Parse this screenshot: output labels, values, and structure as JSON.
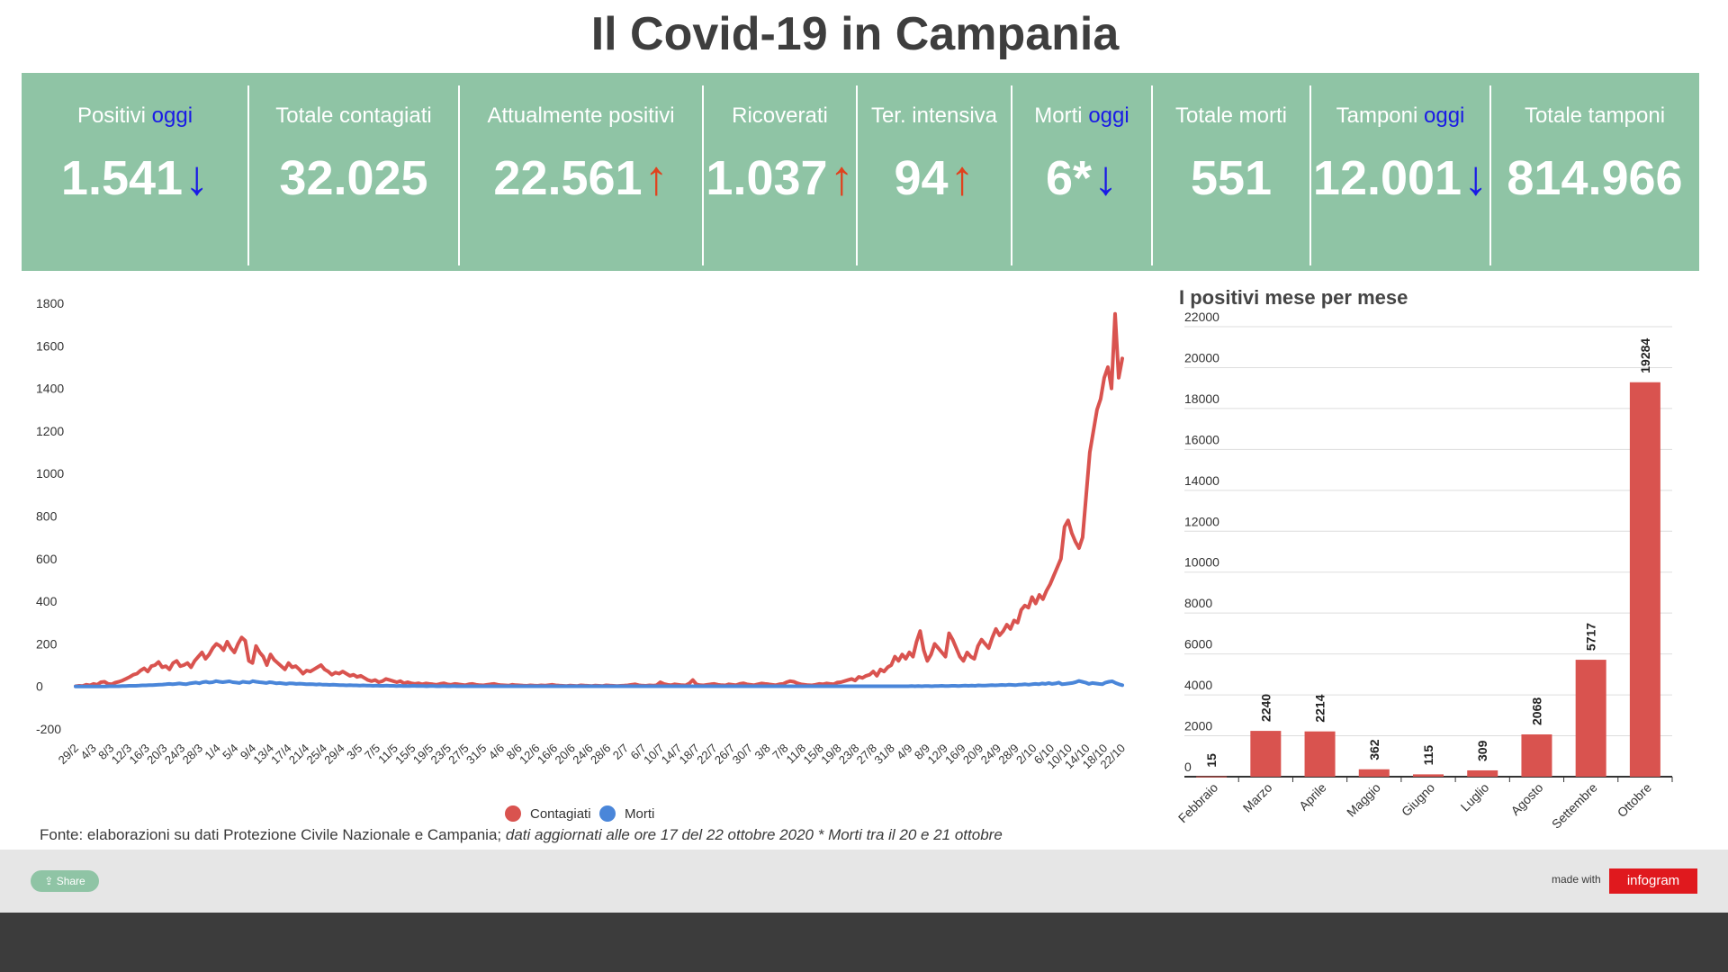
{
  "title": "Il Covid-19 in Campania",
  "stats": [
    {
      "label": "Positivi",
      "label_accent": "oggi",
      "value": "1.541",
      "arrow": "down"
    },
    {
      "label": "Totale contagiati",
      "label_accent": "",
      "value": "32.025",
      "arrow": ""
    },
    {
      "label": "Attualmente positivi",
      "label_accent": "",
      "value": "22.561",
      "arrow": "up"
    },
    {
      "label": "Ricoverati",
      "label_accent": "",
      "value": "1.037",
      "arrow": "up"
    },
    {
      "label": "Ter. intensiva",
      "label_accent": "",
      "value": "94",
      "arrow": "up"
    },
    {
      "label": "Morti",
      "label_accent": "oggi",
      "value": "6*",
      "arrow": "down"
    },
    {
      "label": "Totale morti",
      "label_accent": "",
      "value": "551",
      "arrow": ""
    },
    {
      "label": "Tamponi",
      "label_accent": "oggi",
      "value": "12.001",
      "arrow": "down"
    },
    {
      "label": "Totale tamponi",
      "label_accent": "",
      "value": "814.966",
      "arrow": ""
    }
  ],
  "arrow_glyphs": {
    "up": "↑",
    "down": "↓"
  },
  "colors": {
    "band": "#8fc4a5",
    "accent": "#1a1ae6",
    "arrow_up": "#e0421e",
    "contagiati": "#d9534f",
    "morti": "#4a86d9",
    "bars": "#d9534f"
  },
  "chart_data": [
    {
      "type": "line",
      "title": "",
      "ylim": [
        -200,
        1800
      ],
      "yticks": [
        -200,
        0,
        200,
        400,
        600,
        800,
        1000,
        1200,
        1400,
        1600,
        1800
      ],
      "grid": false,
      "legend_position": "bottom",
      "xtick_labels": [
        "29/2",
        "4/3",
        "8/3",
        "12/3",
        "16/3",
        "20/3",
        "24/3",
        "28/3",
        "1/4",
        "5/4",
        "9/4",
        "13/4",
        "17/4",
        "21/4",
        "25/4",
        "29/4",
        "3/5",
        "7/5",
        "11/5",
        "15/5",
        "19/5",
        "23/5",
        "27/5",
        "31/5",
        "4/6",
        "8/6",
        "12/6",
        "16/6",
        "20/6",
        "24/6",
        "28/6",
        "2/7",
        "6/7",
        "10/7",
        "14/7",
        "18/7",
        "22/7",
        "26/7",
        "30/7",
        "3/8",
        "7/8",
        "11/8",
        "15/8",
        "19/8",
        "23/8",
        "27/8",
        "31/8",
        "4/9",
        "8/9",
        "12/9",
        "16/9",
        "20/9",
        "24/9",
        "28/9",
        "2/10",
        "6/10",
        "10/10",
        "14/10",
        "18/10",
        "22/10"
      ],
      "series": [
        {
          "name": "Contagiati",
          "color": "#d9534f",
          "values": [
            1,
            3,
            2,
            8,
            5,
            12,
            8,
            20,
            22,
            12,
            10,
            18,
            22,
            28,
            36,
            45,
            55,
            60,
            75,
            85,
            70,
            95,
            100,
            115,
            90,
            95,
            80,
            110,
            120,
            95,
            100,
            110,
            90,
            120,
            140,
            160,
            130,
            150,
            180,
            200,
            190,
            170,
            210,
            180,
            160,
            200,
            230,
            215,
            120,
            110,
            190,
            160,
            140,
            100,
            150,
            125,
            110,
            95,
            80,
            110,
            90,
            95,
            80,
            60,
            75,
            70,
            80,
            90,
            100,
            80,
            70,
            55,
            65,
            60,
            70,
            60,
            50,
            55,
            45,
            50,
            40,
            30,
            25,
            30,
            20,
            25,
            35,
            30,
            25,
            20,
            25,
            15,
            20,
            15,
            12,
            15,
            10,
            14,
            12,
            10,
            8,
            12,
            15,
            10,
            8,
            12,
            10,
            8,
            6,
            10,
            12,
            8,
            6,
            5,
            8,
            10,
            12,
            8,
            6,
            5,
            4,
            8,
            6,
            5,
            4,
            3,
            5,
            4,
            3,
            5,
            4,
            6,
            8,
            5,
            4,
            3,
            2,
            4,
            3,
            2,
            5,
            4,
            3,
            2,
            4,
            3,
            2,
            5,
            4,
            3,
            2,
            3,
            4,
            5,
            8,
            10,
            6,
            4,
            3,
            5,
            4,
            6,
            20,
            12,
            8,
            6,
            10,
            8,
            6,
            5,
            14,
            30,
            10,
            6,
            5,
            8,
            10,
            12,
            8,
            6,
            5,
            10,
            8,
            6,
            12,
            15,
            10,
            8,
            6,
            10,
            14,
            12,
            10,
            8,
            6,
            10,
            12,
            20,
            25,
            22,
            15,
            10,
            8,
            6,
            5,
            8,
            12,
            10,
            14,
            12,
            10,
            18,
            20,
            25,
            30,
            35,
            28,
            45,
            40,
            50,
            55,
            70,
            50,
            80,
            70,
            90,
            100,
            140,
            120,
            150,
            130,
            160,
            140,
            210,
            260,
            170,
            120,
            150,
            200,
            180,
            160,
            140,
            250,
            220,
            180,
            140,
            120,
            160,
            140,
            130,
            190,
            220,
            200,
            180,
            230,
            270,
            240,
            260,
            290,
            270,
            310,
            300,
            360,
            380,
            370,
            420,
            390,
            430,
            410,
            450,
            480,
            520,
            560,
            600,
            750,
            780,
            720,
            680,
            650,
            700,
            900,
            1100,
            1200,
            1300,
            1350,
            1450,
            1500,
            1400,
            1750,
            1450,
            1541
          ]
        },
        {
          "name": "Morti",
          "color": "#4a86d9",
          "values": [
            0,
            0,
            0,
            0,
            0,
            0,
            0,
            0,
            0,
            0,
            1,
            1,
            1,
            1,
            2,
            2,
            3,
            3,
            3,
            4,
            5,
            5,
            6,
            6,
            7,
            8,
            9,
            10,
            12,
            10,
            12,
            14,
            12,
            10,
            14,
            16,
            18,
            15,
            20,
            22,
            18,
            20,
            25,
            22,
            20,
            22,
            24,
            20,
            18,
            16,
            22,
            20,
            18,
            25,
            22,
            20,
            18,
            16,
            20,
            18,
            15,
            16,
            14,
            12,
            15,
            14,
            12,
            13,
            12,
            10,
            11,
            10,
            9,
            10,
            8,
            8,
            7,
            8,
            7,
            6,
            6,
            5,
            6,
            5,
            5,
            4,
            5,
            4,
            4,
            3,
            4,
            3,
            3,
            4,
            3,
            3,
            2,
            3,
            2,
            2,
            2,
            3,
            2,
            2,
            2,
            1,
            2,
            2,
            1,
            1,
            2,
            1,
            1,
            2,
            1,
            1,
            1,
            1,
            1,
            1,
            1,
            1,
            1,
            1,
            1,
            1,
            1,
            1,
            1,
            1,
            1,
            1,
            1,
            1,
            1,
            1,
            1,
            1,
            1,
            1,
            1,
            1,
            1,
            1,
            1,
            1,
            1,
            1,
            1,
            1,
            1,
            1,
            1,
            1,
            1,
            1,
            1,
            1,
            1,
            1,
            1,
            1,
            1,
            1,
            1,
            1,
            1,
            1,
            1,
            1,
            1,
            1,
            1,
            1,
            1,
            1,
            1,
            1,
            1,
            1,
            1,
            1,
            1,
            1,
            1,
            1,
            1,
            1,
            1,
            1,
            1,
            1,
            1,
            1,
            1,
            1,
            1,
            1,
            1,
            1,
            1,
            1,
            1,
            1,
            1,
            1,
            1,
            1,
            1,
            1,
            1,
            1,
            1,
            1,
            1,
            1,
            1,
            1,
            1,
            1,
            1,
            1,
            1,
            1,
            1,
            1,
            1,
            1,
            1,
            1,
            1,
            1,
            1,
            1,
            1,
            1,
            1,
            1,
            1,
            1,
            1,
            1,
            1,
            1,
            1,
            1,
            1,
            1,
            1,
            1,
            2,
            1,
            2,
            1,
            2,
            2,
            1,
            2,
            2,
            3,
            2,
            2,
            3,
            3,
            2,
            3,
            4,
            3,
            4,
            3,
            5,
            4,
            4,
            5,
            6,
            5,
            6,
            7,
            6,
            8,
            7,
            6,
            8,
            9,
            10,
            8,
            10,
            12,
            10,
            14,
            12,
            16,
            12,
            14,
            18,
            10,
            12,
            14,
            16,
            20,
            26,
            22,
            18,
            12,
            16,
            14,
            12,
            10,
            18,
            22,
            24,
            16,
            10,
            6
          ]
        }
      ]
    },
    {
      "type": "bar",
      "title": "I positivi mese per mese",
      "ylim": [
        0,
        22000
      ],
      "yticks": [
        0,
        2000,
        4000,
        6000,
        8000,
        10000,
        12000,
        14000,
        16000,
        18000,
        20000,
        22000
      ],
      "grid": true,
      "categories": [
        "Febbraio",
        "Marzo",
        "Aprile",
        "Maggio",
        "Giugno",
        "Luglio",
        "Agosto",
        "Settembre",
        "Ottobre"
      ],
      "values": [
        15,
        2240,
        2214,
        362,
        115,
        309,
        2068,
        5717,
        19284
      ],
      "data_labels": [
        "15",
        "2240",
        "2214",
        "362",
        "115",
        "309",
        "2068",
        "5717",
        "19284"
      ]
    }
  ],
  "source": {
    "text": "Fonte: elaborazioni su dati Protezione Civile Nazionale e Campania; ",
    "italic": "dati aggiornati alle ore 17 del 22 ottobre 2020 * Morti tra il 20 e 21 ottobre"
  },
  "footer": {
    "share_label": "Share",
    "made_with": "made with",
    "logo_text": "infogram"
  }
}
